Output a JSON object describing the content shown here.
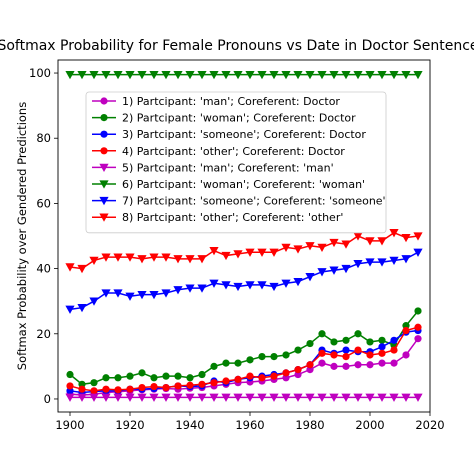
{
  "chart_data": {
    "type": "line",
    "title": "Softmax Probability for Female Pronouns vs Date in Doctor Sentence",
    "xlabel": "",
    "ylabel": "Softmax Probability over Gendered Predictions",
    "xlim": [
      1896,
      2020
    ],
    "ylim": [
      -4,
      104
    ],
    "xticks": [
      1900,
      1920,
      1940,
      1960,
      1980,
      2000,
      2020
    ],
    "yticks": [
      0,
      20,
      40,
      60,
      80,
      100
    ],
    "grid": false,
    "legend_position": "upper-left",
    "x": [
      1900,
      1904,
      1908,
      1912,
      1916,
      1920,
      1924,
      1928,
      1932,
      1936,
      1940,
      1944,
      1948,
      1952,
      1956,
      1960,
      1964,
      1968,
      1972,
      1976,
      1980,
      1984,
      1988,
      1992,
      1996,
      2000,
      2004,
      2008,
      2012,
      2016
    ],
    "series": [
      {
        "name": "1) Partcipant: 'man'; Coreferent: Doctor",
        "color": "#bf00bf",
        "marker": "circle",
        "values": [
          1.5,
          1.2,
          1.4,
          2.0,
          2.2,
          2.5,
          2.8,
          3.0,
          3.2,
          3.0,
          3.3,
          3.5,
          4.0,
          4.5,
          5.0,
          5.2,
          5.5,
          6.0,
          6.5,
          7.5,
          9.0,
          11.0,
          10.0,
          10.0,
          10.5,
          10.5,
          11.0,
          11.0,
          13.5,
          18.5
        ]
      },
      {
        "name": "2) Partcipant: 'woman'; Coreferent: Doctor",
        "color": "#008000",
        "marker": "circle",
        "values": [
          7.5,
          4.5,
          5.0,
          6.5,
          6.5,
          7.0,
          8.0,
          6.5,
          7.0,
          7.0,
          6.5,
          7.5,
          10.0,
          11.0,
          11.0,
          12.0,
          13.0,
          13.0,
          13.5,
          15.0,
          17.0,
          20.0,
          17.5,
          18.0,
          20.0,
          17.5,
          18.0,
          16.5,
          22.5,
          27.0
        ]
      },
      {
        "name": "3) Partcipant: 'someone'; Coreferent: Doctor",
        "color": "#0000ff",
        "marker": "circle",
        "values": [
          2.5,
          2.0,
          2.3,
          2.5,
          2.5,
          3.0,
          3.0,
          3.2,
          3.5,
          4.0,
          3.8,
          4.0,
          5.5,
          5.0,
          6.0,
          6.5,
          7.0,
          7.5,
          8.0,
          9.0,
          10.5,
          15.0,
          14.0,
          15.0,
          14.5,
          14.5,
          16.0,
          18.0,
          20.5,
          21.0
        ]
      },
      {
        "name": "4) Partcipant: 'other'; Coreferent: Doctor",
        "color": "#ff0000",
        "marker": "circle",
        "values": [
          4.0,
          3.0,
          2.5,
          3.0,
          2.8,
          3.0,
          3.5,
          3.8,
          3.5,
          4.0,
          4.2,
          4.5,
          5.0,
          5.5,
          6.0,
          7.0,
          6.5,
          7.0,
          8.0,
          9.0,
          10.5,
          14.0,
          13.5,
          13.0,
          15.0,
          13.5,
          14.0,
          15.0,
          21.0,
          22.0
        ]
      },
      {
        "name": "5) Partcipant: 'man'; Coreferent: 'man'",
        "color": "#bf00bf",
        "marker": "triangle-down",
        "values": [
          0.5,
          0.5,
          0.5,
          0.5,
          0.5,
          0.5,
          0.5,
          0.5,
          0.5,
          0.5,
          0.5,
          0.5,
          0.5,
          0.5,
          0.5,
          0.5,
          0.5,
          0.5,
          0.5,
          0.5,
          0.5,
          0.5,
          0.5,
          0.5,
          0.5,
          0.5,
          0.5,
          0.5,
          0.5,
          0.5
        ]
      },
      {
        "name": "6) Partcipant: 'woman'; Coreferent: 'woman'",
        "color": "#008000",
        "marker": "triangle-down",
        "values": [
          99.5,
          99.5,
          99.5,
          99.5,
          99.5,
          99.5,
          99.5,
          99.5,
          99.5,
          99.5,
          99.5,
          99.5,
          99.5,
          99.5,
          99.5,
          99.5,
          99.5,
          99.5,
          99.5,
          99.5,
          99.5,
          99.5,
          99.5,
          99.5,
          99.5,
          99.5,
          99.5,
          99.5,
          99.5,
          99.5
        ]
      },
      {
        "name": "7) Partcipant: 'someone'; Coreferent: 'someone'",
        "color": "#0000ff",
        "marker": "triangle-down",
        "values": [
          27.5,
          28.0,
          30.0,
          32.5,
          32.5,
          31.5,
          32.0,
          32.0,
          32.5,
          33.5,
          34.0,
          34.0,
          35.5,
          35.0,
          34.5,
          35.0,
          35.0,
          34.5,
          35.5,
          36.0,
          37.5,
          39.0,
          39.5,
          40.0,
          41.5,
          42.0,
          42.0,
          42.5,
          43.0,
          45.0
        ]
      },
      {
        "name": "8) Partcipant: 'other'; Coreferent: 'other'",
        "color": "#ff0000",
        "marker": "triangle-down",
        "values": [
          40.5,
          40.0,
          42.5,
          43.5,
          43.5,
          43.5,
          43.0,
          43.5,
          43.5,
          43.0,
          43.0,
          43.0,
          45.5,
          44.0,
          44.5,
          45.0,
          45.0,
          45.0,
          46.5,
          46.0,
          47.0,
          46.5,
          48.0,
          47.5,
          50.0,
          48.5,
          48.5,
          51.0,
          49.5,
          50.0
        ]
      }
    ]
  }
}
